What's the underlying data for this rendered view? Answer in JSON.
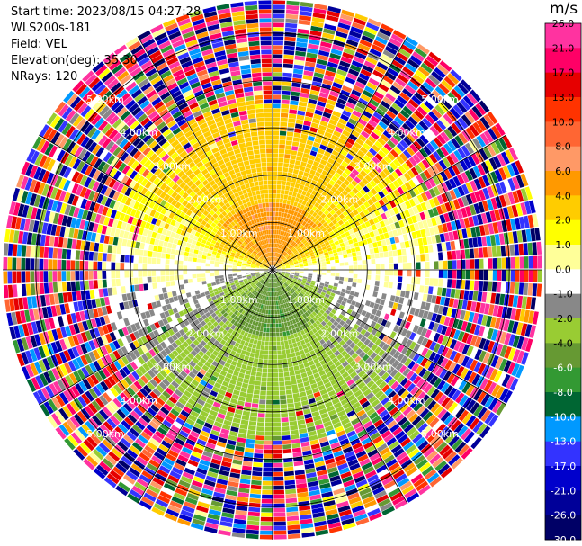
{
  "header": {
    "start_time": "Start time: 2023/08/15 04:27:28",
    "instrument": "WLS200s-181",
    "field": "Field: VEL",
    "elevation": "Elevation(deg): 35.30",
    "nrays": "NRays: 120"
  },
  "colorbar": {
    "unit": "m/s",
    "ticks": [
      "26.0",
      "21.0",
      "17.0",
      "13.0",
      "10.0",
      "8.0",
      "6.0",
      "4.0",
      "2.0",
      "1.0",
      "0.0",
      "-1.0",
      "-2.0",
      "-4.0",
      "-6.0",
      "-8.0",
      "-10.0",
      "-13.0",
      "-17.0",
      "-21.0",
      "-26.0",
      "-30.0"
    ],
    "colors": [
      "#ff33a0",
      "#ff0066",
      "#e60000",
      "#ff3300",
      "#ff6633",
      "#ff9966",
      "#ff9900",
      "#ffcc00",
      "#ffff00",
      "#ffff99",
      "#ffffff",
      "#888888",
      "#99cc33",
      "#669933",
      "#339933",
      "#006633",
      "#0099ff",
      "#3333ff",
      "#0000cc",
      "#000099",
      "#000066",
      "#ffffff"
    ]
  },
  "chart_data": {
    "type": "heatmap",
    "plot": "PPI radial velocity",
    "field": "VEL",
    "units": "m/s",
    "elevation_deg": 35.3,
    "nrays": 120,
    "range_ring_labels": [
      "1.00km",
      "2.00km",
      "3.00km",
      "4.00km",
      "5.00km"
    ],
    "range_rings_km": [
      1,
      2,
      3,
      4,
      5
    ],
    "color_levels": [
      -30,
      -26,
      -21,
      -17,
      -13,
      -10,
      -8,
      -6,
      -4,
      -2,
      -1,
      0,
      1,
      2,
      4,
      6,
      8,
      10,
      13,
      17,
      21,
      26
    ],
    "pattern": {
      "north_half": "positive velocities: yellow 2-4 m/s, orange 4-8 m/s near center",
      "south_half": "negative velocities: olive/green -2 to -6 m/s",
      "east_west": "near zero (grey)",
      "outer_ranges_km": "beyond ~3.5 km noisy, random values over full scale"
    }
  }
}
